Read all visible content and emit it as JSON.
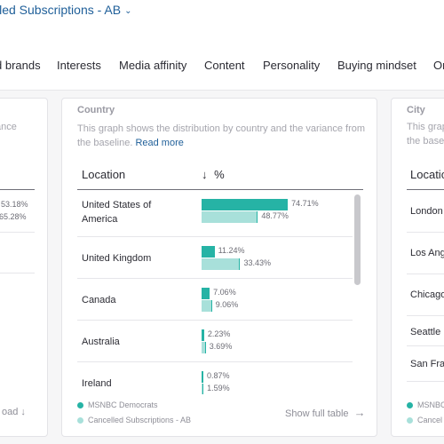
{
  "header": {
    "audience_title": "lled Subscriptions - AB",
    "chevron_icon": "chevron-down-icon"
  },
  "tabs": [
    {
      "label": "d brands"
    },
    {
      "label": "Interests"
    },
    {
      "label": "Media affinity"
    },
    {
      "label": "Content"
    },
    {
      "label": "Personality"
    },
    {
      "label": "Buying mindset"
    },
    {
      "label": "Or"
    }
  ],
  "left_card": {
    "desc_fragment": "ance",
    "value_a": "53.18%",
    "value_b": "65.28%",
    "download_label": "oad",
    "download_icon": "arrow-down-icon"
  },
  "country_card": {
    "title": "Country",
    "description": "This graph shows the distribution by country and the variance from the baseline.",
    "read_more": "Read more",
    "col_location": "Location",
    "col_percent": "%",
    "sort_icon": "arrow-down-icon",
    "colors": {
      "series_a": "#26b3a5",
      "series_b": "#a8e0da"
    },
    "legend": [
      {
        "label": "MSNBC Democrats",
        "color": "#26b3a5"
      },
      {
        "label": "Cancelled Subscriptions - AB",
        "color": "#a8e0da"
      }
    ],
    "show_full_table": "Show full table",
    "show_full_icon": "arrow-right-icon",
    "chart_data": {
      "type": "bar",
      "categories": [
        "United States of America",
        "United Kingdom",
        "Canada",
        "Australia",
        "Ireland"
      ],
      "series": [
        {
          "name": "MSNBC Democrats",
          "values": [
            74.71,
            11.24,
            7.06,
            2.23,
            0.87
          ],
          "labels": [
            "74.71%",
            "11.24%",
            "7.06%",
            "2.23%",
            "0.87%"
          ]
        },
        {
          "name": "Cancelled Subscriptions - AB",
          "values": [
            48.77,
            33.43,
            9.06,
            3.69,
            1.59
          ],
          "labels": [
            "48.77%",
            "33.43%",
            "9.06%",
            "3.69%",
            "1.59%"
          ]
        }
      ]
    }
  },
  "right_card": {
    "title": "City",
    "desc_line1": "This grap",
    "desc_line2": "the base",
    "col_location": "Locatio",
    "cities": [
      "London",
      "Los Ange",
      "Chicago",
      "Seattle",
      "San Fran"
    ],
    "legend": [
      "MSNBC",
      "Cancel"
    ]
  }
}
